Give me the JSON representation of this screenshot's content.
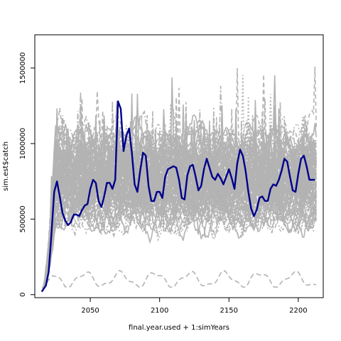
{
  "chart_data": {
    "type": "line",
    "title": "",
    "xlabel": "final.year.used + 1:simYears",
    "ylabel": "sim.est$catch",
    "xlim": [
      2010,
      2218
    ],
    "ylim": [
      -20000,
      1720000
    ],
    "xticks": [
      2050,
      2100,
      2150,
      2200
    ],
    "yticks": [
      0,
      500000,
      1000000,
      1500000
    ],
    "x_start": 2015,
    "x_end": 2213,
    "grid": false,
    "legend": "none",
    "background_simulations": {
      "description_color": "#b3b3b3",
      "count": 100,
      "typical_band": [
        450000,
        1200000
      ],
      "occasional_peaks": [
        1500000,
        1650000
      ],
      "low_series_band": [
        60000,
        180000
      ]
    },
    "series": [
      {
        "color": "#00008b",
        "x": [
          2015,
          2018,
          2020,
          2022,
          2024,
          2026,
          2028,
          2030,
          2032,
          2034,
          2036,
          2038,
          2040,
          2042,
          2044,
          2046,
          2048,
          2050,
          2052,
          2054,
          2056,
          2058,
          2060,
          2062,
          2064,
          2066,
          2068,
          2070,
          2072,
          2074,
          2076,
          2078,
          2080,
          2082,
          2084,
          2086,
          2088,
          2090,
          2092,
          2094,
          2096,
          2098,
          2100,
          2102,
          2104,
          2106,
          2108,
          2110,
          2112,
          2114,
          2116,
          2118,
          2120,
          2122,
          2124,
          2126,
          2128,
          2130,
          2132,
          2134,
          2136,
          2138,
          2140,
          2142,
          2144,
          2146,
          2148,
          2150,
          2152,
          2154,
          2156,
          2158,
          2160,
          2162,
          2164,
          2166,
          2168,
          2170,
          2172,
          2174,
          2176,
          2178,
          2180,
          2182,
          2184,
          2186,
          2188,
          2190,
          2192,
          2194,
          2196,
          2198,
          2200,
          2202,
          2204,
          2206,
          2208,
          2210,
          2212
        ],
        "y": [
          20000,
          60000,
          150000,
          400000,
          680000,
          750000,
          650000,
          540000,
          490000,
          460000,
          480000,
          530000,
          530000,
          520000,
          560000,
          590000,
          600000,
          700000,
          760000,
          740000,
          620000,
          580000,
          650000,
          740000,
          740000,
          700000,
          760000,
          1280000,
          1230000,
          950000,
          1050000,
          1100000,
          940000,
          730000,
          680000,
          820000,
          940000,
          920000,
          720000,
          620000,
          620000,
          680000,
          680000,
          640000,
          780000,
          830000,
          840000,
          850000,
          840000,
          760000,
          640000,
          630000,
          790000,
          850000,
          860000,
          780000,
          690000,
          720000,
          830000,
          900000,
          840000,
          780000,
          760000,
          800000,
          770000,
          730000,
          780000,
          830000,
          770000,
          700000,
          870000,
          960000,
          920000,
          820000,
          680000,
          570000,
          520000,
          560000,
          640000,
          650000,
          620000,
          620000,
          700000,
          730000,
          720000,
          760000,
          820000,
          900000,
          880000,
          780000,
          690000,
          680000,
          800000,
          900000,
          920000,
          850000,
          760000,
          760000,
          760000
        ]
      }
    ]
  }
}
